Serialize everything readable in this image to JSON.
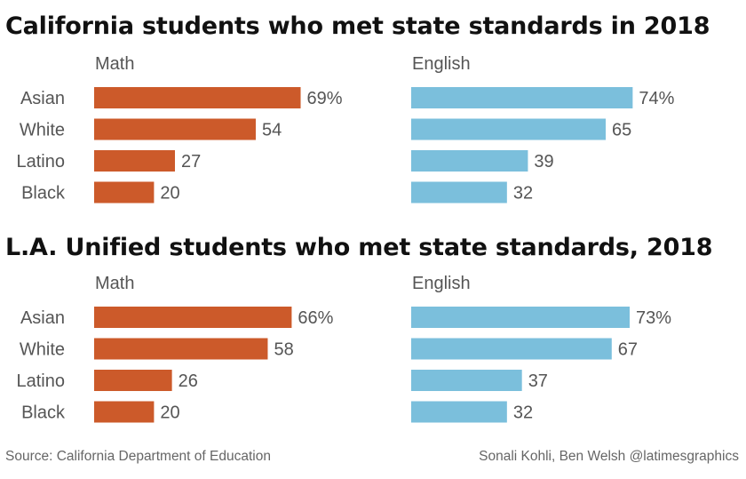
{
  "chart_data": [
    {
      "type": "bar",
      "title": "California students who met state standards in 2018",
      "categories": [
        "Asian",
        "White",
        "Latino",
        "Black"
      ],
      "series": [
        {
          "name": "Math",
          "values": [
            69,
            54,
            27,
            20
          ],
          "labels": [
            "69%",
            "54",
            "27",
            "20"
          ],
          "color": "#cc5a2a"
        },
        {
          "name": "English",
          "values": [
            74,
            65,
            39,
            32
          ],
          "labels": [
            "74%",
            "65",
            "39",
            "32"
          ],
          "color": "#7bbfdc"
        }
      ]
    },
    {
      "type": "bar",
      "title": "L.A. Unified students who met state standards, 2018",
      "categories": [
        "Asian",
        "White",
        "Latino",
        "Black"
      ],
      "series": [
        {
          "name": "Math",
          "values": [
            66,
            58,
            26,
            20
          ],
          "labels": [
            "66%",
            "58",
            "26",
            "20"
          ],
          "color": "#cc5a2a"
        },
        {
          "name": "English",
          "values": [
            73,
            67,
            37,
            32
          ],
          "labels": [
            "73%",
            "67",
            "37",
            "32"
          ],
          "color": "#7bbfdc"
        }
      ]
    }
  ],
  "footer": {
    "source": "Source: California Department of Education",
    "credit": "Sonali Kohli, Ben Welsh @latimesgraphics"
  }
}
